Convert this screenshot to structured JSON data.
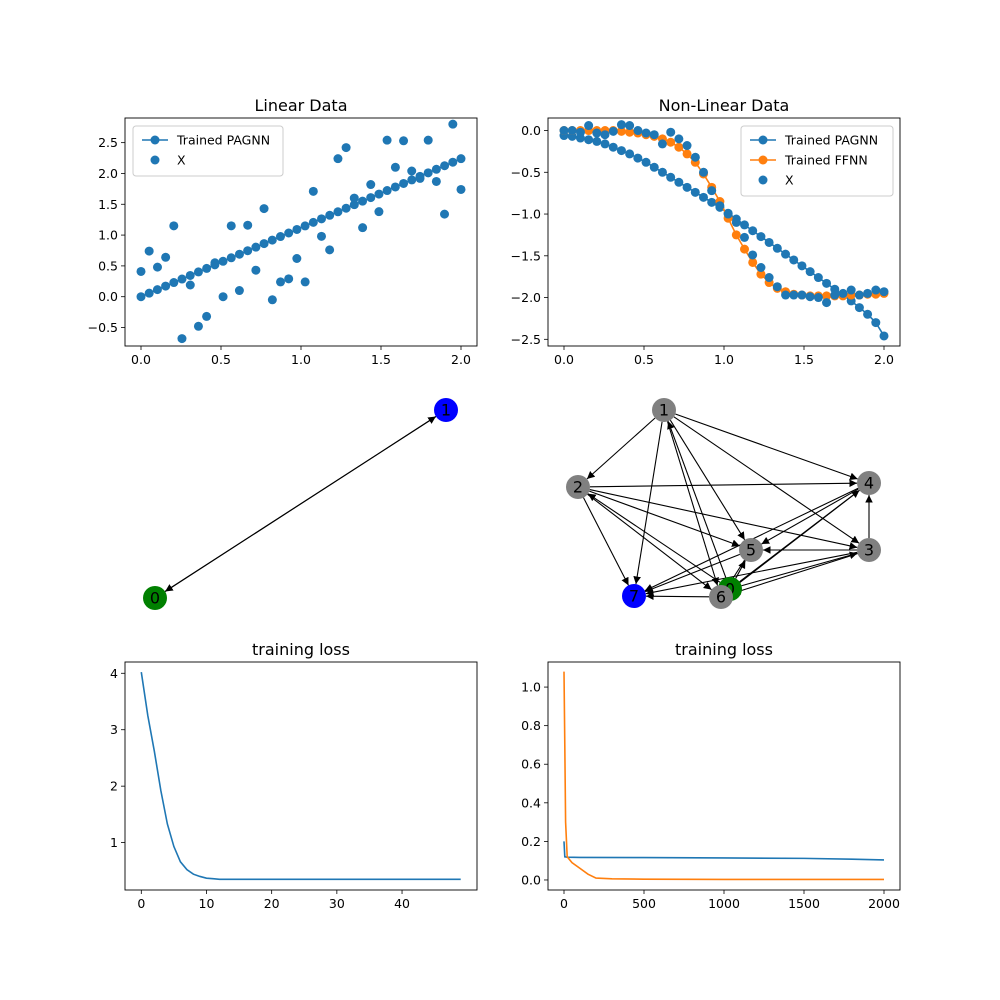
{
  "colors": {
    "blue": "#1f77b4",
    "orange": "#ff7f0e",
    "node_gray": "#808080",
    "node_green": "#008000",
    "node_blue": "#0000ff"
  },
  "chart_data": [
    {
      "type": "scatter",
      "title": "Linear Data",
      "xlabel": "",
      "ylabel": "",
      "xlim": [
        -0.1,
        2.1
      ],
      "ylim": [
        -0.8,
        2.9
      ],
      "xticks": [
        "0.0",
        "0.5",
        "1.0",
        "1.5",
        "2.0"
      ],
      "yticks": [
        "−0.5",
        "0.0",
        "0.5",
        "1.0",
        "1.5",
        "2.0",
        "2.5"
      ],
      "legend_position": "top-left",
      "series": [
        {
          "name": "Trained PAGNN",
          "kind": "line-markers",
          "color": "#1f77b4",
          "x_start": 0.0,
          "x_end": 2.0,
          "n": 40,
          "y_start": 0.0,
          "y_end": 2.24
        },
        {
          "name": "X",
          "kind": "scatter",
          "color": "#1f77b4",
          "x": [
            0.0,
            0.051,
            0.103,
            0.154,
            0.205,
            0.256,
            0.308,
            0.359,
            0.41,
            0.462,
            0.513,
            0.564,
            0.615,
            0.667,
            0.718,
            0.769,
            0.821,
            0.872,
            0.923,
            0.974,
            1.026,
            1.077,
            1.128,
            1.179,
            1.231,
            1.282,
            1.333,
            1.385,
            1.436,
            1.487,
            1.538,
            1.59,
            1.641,
            1.692,
            1.744,
            1.795,
            1.846,
            1.897,
            1.949,
            2.0
          ],
          "y": [
            0.41,
            0.74,
            0.48,
            0.64,
            1.15,
            -0.68,
            0.19,
            -0.48,
            -0.32,
            0.55,
            0.0,
            1.15,
            0.1,
            1.16,
            0.43,
            1.43,
            -0.05,
            0.24,
            0.29,
            0.62,
            0.24,
            1.71,
            0.98,
            0.76,
            2.24,
            2.42,
            1.6,
            1.12,
            1.82,
            1.38,
            2.54,
            2.1,
            2.53,
            2.04,
            1.92,
            2.54,
            1.87,
            1.34,
            2.8,
            1.74
          ]
        }
      ]
    },
    {
      "type": "scatter",
      "title": "Non-Linear Data",
      "xlabel": "",
      "ylabel": "",
      "xlim": [
        -0.1,
        2.1
      ],
      "ylim": [
        -2.58,
        0.15
      ],
      "xticks": [
        "0.0",
        "0.5",
        "1.0",
        "1.5",
        "2.0"
      ],
      "yticks": [
        "−2.5",
        "−2.0",
        "−1.5",
        "−1.0",
        "−0.5",
        "0.0"
      ],
      "legend_position": "top-right",
      "series": [
        {
          "name": "Trained PAGNN",
          "kind": "line-markers",
          "color": "#1f77b4",
          "x_start": 0.0,
          "x_end": 2.0,
          "n": 40,
          "y": [
            -0.06,
            -0.07,
            -0.09,
            -0.11,
            -0.13,
            -0.16,
            -0.2,
            -0.24,
            -0.28,
            -0.33,
            -0.38,
            -0.44,
            -0.5,
            -0.56,
            -0.62,
            -0.68,
            -0.74,
            -0.8,
            -0.86,
            -0.92,
            -0.99,
            -1.06,
            -1.13,
            -1.2,
            -1.27,
            -1.34,
            -1.41,
            -1.48,
            -1.55,
            -1.62,
            -1.69,
            -1.76,
            -1.83,
            -1.9,
            -1.97,
            -2.04,
            -2.12,
            -2.2,
            -2.3,
            -2.46
          ]
        },
        {
          "name": "Trained FFNN",
          "kind": "line-markers",
          "color": "#ff7f0e",
          "x_start": 0.0,
          "x_end": 2.0,
          "n": 40,
          "y": [
            0.0,
            0.0,
            0.0,
            0.0,
            0.0,
            0.0,
            0.0,
            -0.01,
            -0.02,
            -0.03,
            -0.05,
            -0.07,
            -0.1,
            -0.14,
            -0.2,
            -0.28,
            -0.38,
            -0.52,
            -0.68,
            -0.85,
            -1.05,
            -1.25,
            -1.42,
            -1.58,
            -1.72,
            -1.82,
            -1.89,
            -1.93,
            -1.96,
            -1.97,
            -1.98,
            -1.98,
            -1.98,
            -1.98,
            -1.98,
            -1.97,
            -1.97,
            -1.96,
            -1.96,
            -1.95
          ]
        },
        {
          "name": "X",
          "kind": "scatter",
          "color": "#1f77b4",
          "x": [
            0.0,
            0.051,
            0.103,
            0.154,
            0.205,
            0.256,
            0.308,
            0.359,
            0.41,
            0.462,
            0.513,
            0.564,
            0.615,
            0.667,
            0.718,
            0.769,
            0.821,
            0.872,
            0.923,
            0.974,
            1.026,
            1.077,
            1.128,
            1.179,
            1.231,
            1.282,
            1.333,
            1.385,
            1.436,
            1.487,
            1.538,
            1.59,
            1.641,
            1.692,
            1.744,
            1.795,
            1.846,
            1.897,
            1.949,
            2.0
          ],
          "y": [
            0.0,
            0.0,
            -0.02,
            0.06,
            -0.03,
            -0.05,
            -0.01,
            0.07,
            0.06,
            0.0,
            -0.03,
            -0.05,
            -0.16,
            -0.02,
            -0.1,
            -0.18,
            -0.32,
            -0.5,
            -0.72,
            -0.9,
            -1.0,
            -1.1,
            -1.28,
            -1.49,
            -1.64,
            -1.76,
            -1.87,
            -1.97,
            -1.97,
            -1.97,
            -1.99,
            -2.0,
            -2.06,
            -1.97,
            -1.95,
            -1.91,
            -1.97,
            -1.95,
            -1.91,
            -1.93
          ]
        }
      ]
    },
    {
      "type": "graph",
      "title": "",
      "nodes": [
        {
          "id": "0",
          "role": "input",
          "color": "#008000"
        },
        {
          "id": "1",
          "role": "output",
          "color": "#0000ff"
        }
      ],
      "edges": [
        [
          "0",
          "1"
        ],
        [
          "1",
          "0"
        ]
      ]
    },
    {
      "type": "graph",
      "title": "",
      "nodes": [
        {
          "id": "0",
          "role": "input",
          "color": "#008000"
        },
        {
          "id": "1",
          "role": "hidden",
          "color": "#808080"
        },
        {
          "id": "2",
          "role": "hidden",
          "color": "#808080"
        },
        {
          "id": "3",
          "role": "hidden",
          "color": "#808080"
        },
        {
          "id": "4",
          "role": "hidden",
          "color": "#808080"
        },
        {
          "id": "5",
          "role": "hidden",
          "color": "#808080"
        },
        {
          "id": "6",
          "role": "hidden",
          "color": "#808080"
        },
        {
          "id": "7",
          "role": "output",
          "color": "#0000ff"
        }
      ],
      "edges": [
        [
          "1",
          "2"
        ],
        [
          "1",
          "4"
        ],
        [
          "1",
          "3"
        ],
        [
          "1",
          "5"
        ],
        [
          "1",
          "6"
        ],
        [
          "1",
          "7"
        ],
        [
          "2",
          "4"
        ],
        [
          "2",
          "3"
        ],
        [
          "2",
          "5"
        ],
        [
          "2",
          "6"
        ],
        [
          "2",
          "7"
        ],
        [
          "3",
          "4"
        ],
        [
          "3",
          "5"
        ],
        [
          "3",
          "6"
        ],
        [
          "3",
          "7"
        ],
        [
          "4",
          "5"
        ],
        [
          "4",
          "6"
        ],
        [
          "4",
          "7"
        ],
        [
          "5",
          "6"
        ],
        [
          "5",
          "7"
        ],
        [
          "6",
          "7"
        ],
        [
          "0",
          "1"
        ],
        [
          "0",
          "2"
        ],
        [
          "0",
          "3"
        ],
        [
          "0",
          "4"
        ],
        [
          "0",
          "5"
        ]
      ]
    },
    {
      "type": "line",
      "title": "training loss",
      "xlabel": "",
      "ylabel": "",
      "xlim": [
        -2.5,
        51.5
      ],
      "ylim": [
        0.16,
        4.2
      ],
      "xticks": [
        "0",
        "10",
        "20",
        "30",
        "40"
      ],
      "yticks": [
        "1",
        "2",
        "3",
        "4"
      ],
      "series": [
        {
          "color": "#1f77b4",
          "x_start": 0,
          "x_end": 49,
          "y": [
            4.02,
            3.25,
            2.62,
            1.92,
            1.33,
            0.93,
            0.66,
            0.52,
            0.44,
            0.4,
            0.37,
            0.36,
            0.35,
            0.35,
            0.35,
            0.35,
            0.35,
            0.35,
            0.35,
            0.35,
            0.35,
            0.35,
            0.35,
            0.35,
            0.35,
            0.35,
            0.35,
            0.35,
            0.35,
            0.35,
            0.35,
            0.35,
            0.35,
            0.35,
            0.35,
            0.35,
            0.35,
            0.35,
            0.35,
            0.35,
            0.35,
            0.35,
            0.35,
            0.35,
            0.35,
            0.35,
            0.35,
            0.35,
            0.35,
            0.35
          ]
        }
      ]
    },
    {
      "type": "line",
      "title": "training loss",
      "xlabel": "",
      "ylabel": "",
      "xlim": [
        -100,
        2100
      ],
      "ylim": [
        -0.052,
        1.13
      ],
      "xticks": [
        "0",
        "500",
        "1000",
        "1500",
        "2000"
      ],
      "yticks": [
        "0.0",
        "0.2",
        "0.4",
        "0.6",
        "0.8",
        "1.0"
      ],
      "series": [
        {
          "color": "#1f77b4",
          "x": [
            0,
            5,
            20,
            100,
            500,
            1000,
            1500,
            1800,
            2000
          ],
          "y": [
            0.2,
            0.12,
            0.118,
            0.117,
            0.116,
            0.114,
            0.112,
            0.108,
            0.104
          ]
        },
        {
          "color": "#ff7f0e",
          "x": [
            0,
            5,
            10,
            20,
            50,
            100,
            150,
            200,
            300,
            500,
            1000,
            2000
          ],
          "y": [
            1.08,
            0.7,
            0.3,
            0.12,
            0.09,
            0.06,
            0.03,
            0.01,
            0.006,
            0.004,
            0.003,
            0.003
          ]
        }
      ]
    }
  ]
}
